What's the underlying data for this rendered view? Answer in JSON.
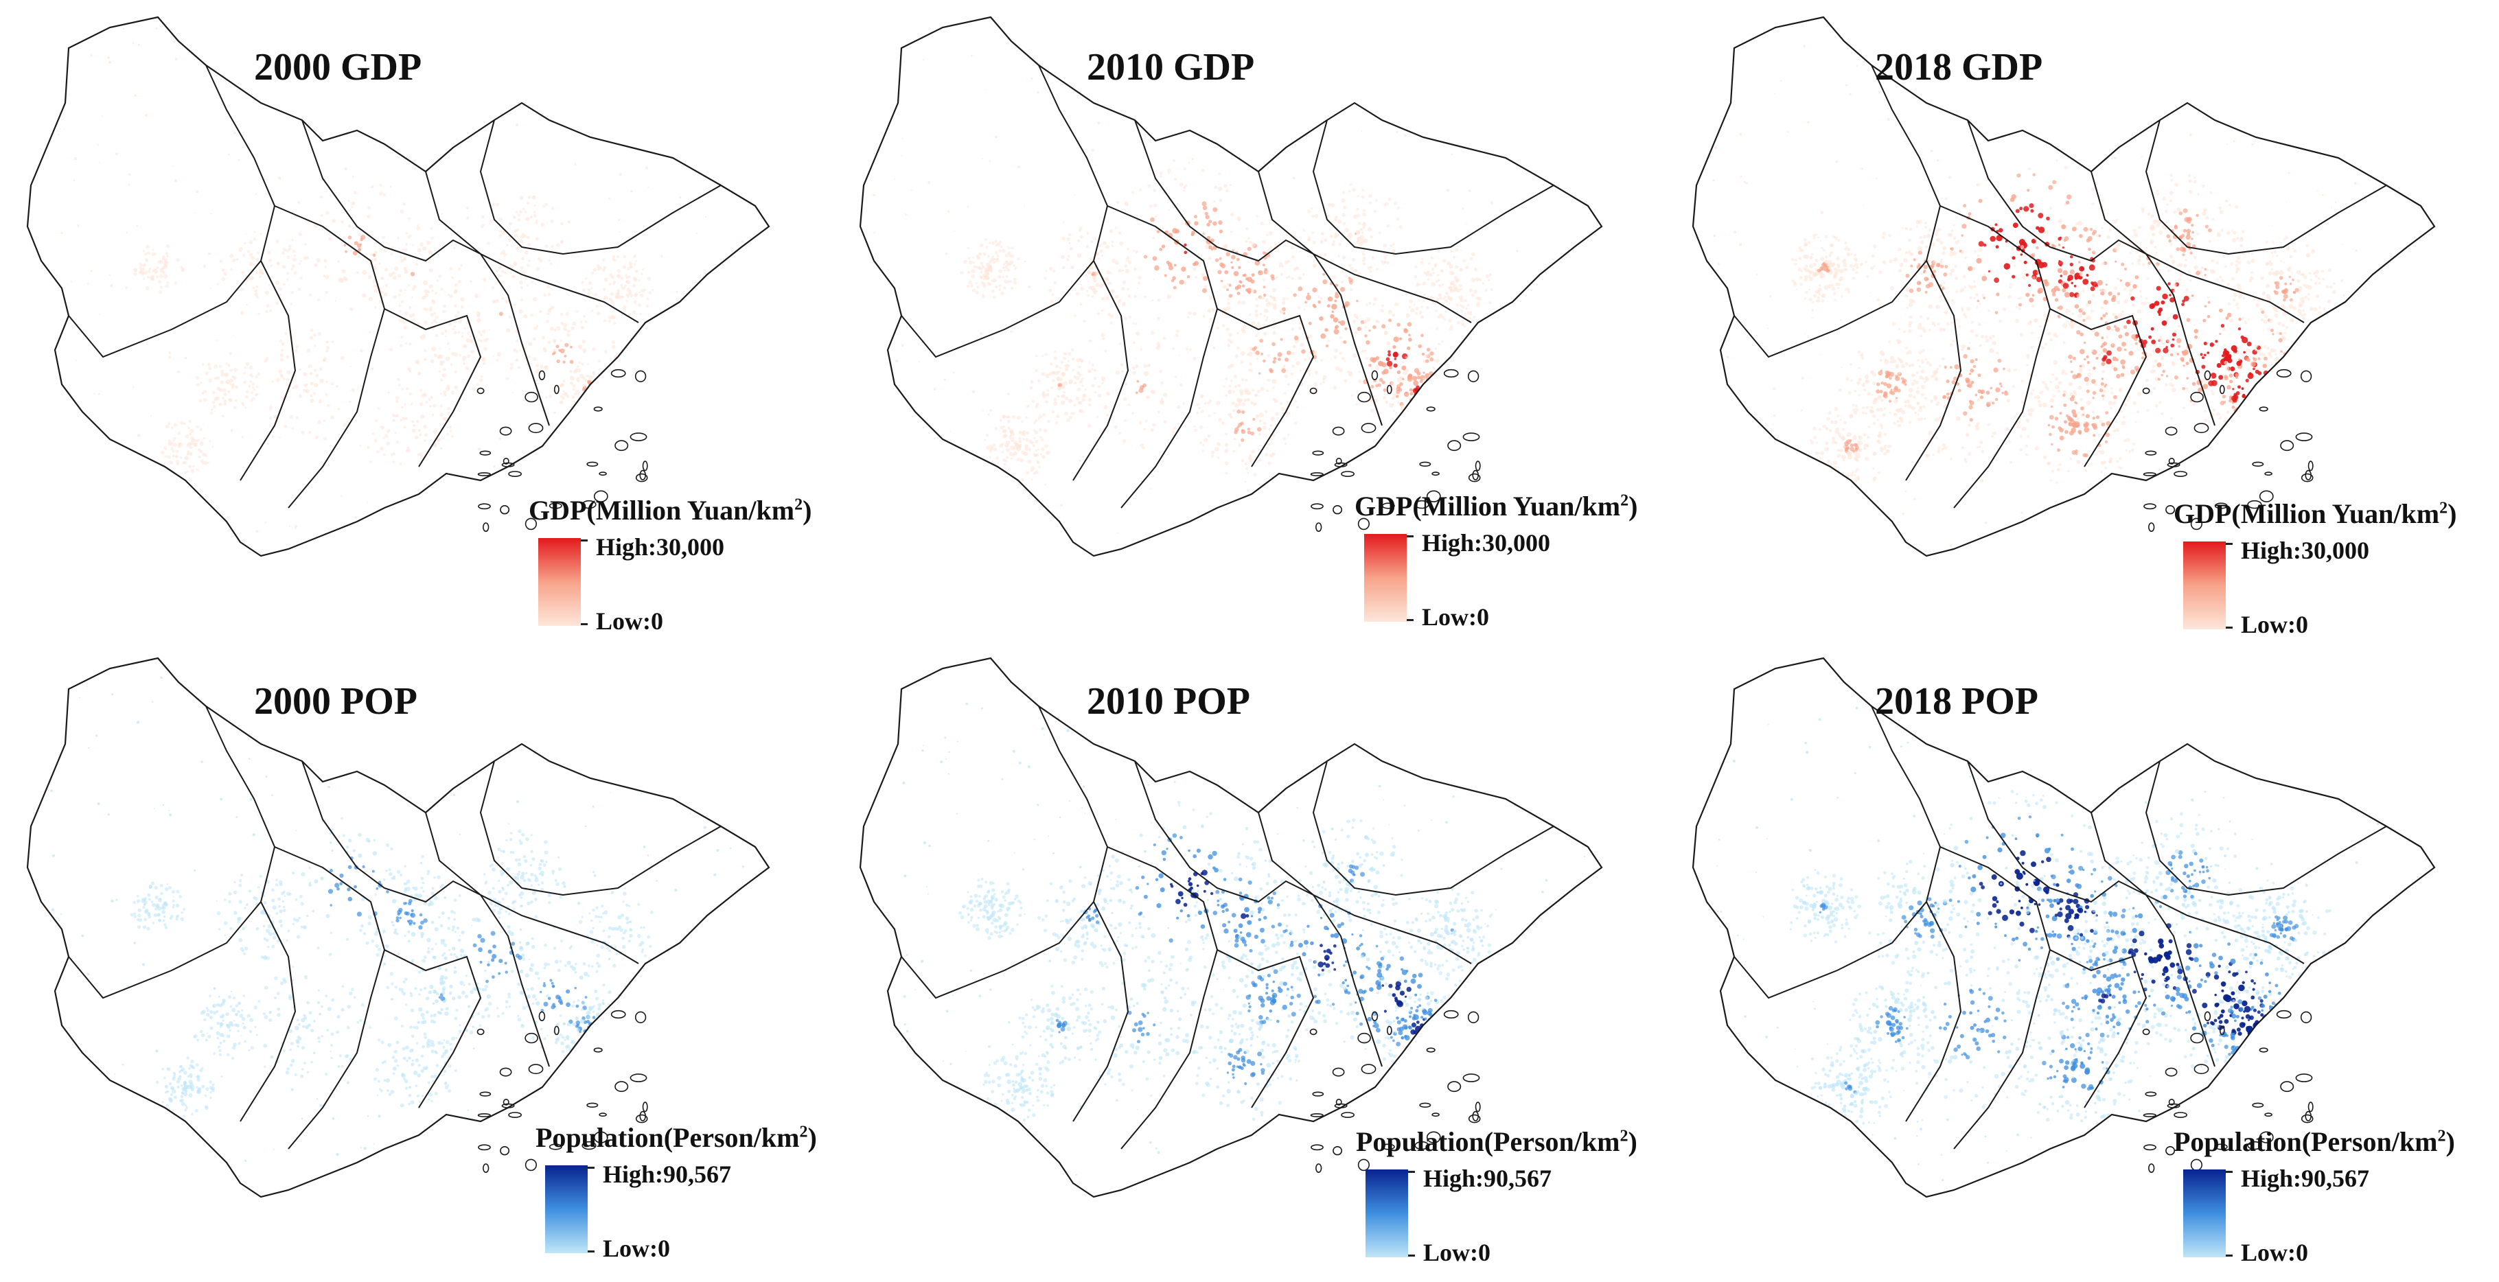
{
  "figure": {
    "panels": [
      {
        "title": "2000 GDP",
        "variable": "GDP",
        "year": "2000",
        "color": "#e8261e",
        "intensity": 0.35,
        "legend": {
          "unit_base": "GDP(Million Yuan/km",
          "unit_exp": "2",
          "unit_close": ")",
          "high": "High:30,000",
          "low": "Low:0"
        }
      },
      {
        "title": "2010 GDP",
        "variable": "GDP",
        "year": "2010",
        "color": "#e8261e",
        "intensity": 0.65,
        "legend": {
          "unit_base": "GDP(Million Yuan/km",
          "unit_exp": "2",
          "unit_close": ")",
          "high": "High:30,000",
          "low": "Low:0"
        }
      },
      {
        "title": "2018 GDP",
        "variable": "GDP",
        "year": "2018",
        "color": "#e8261e",
        "intensity": 1.0,
        "legend": {
          "unit_base": "GDP(Million Yuan/km",
          "unit_exp": "2",
          "unit_close": ")",
          "high": "High:30,000",
          "low": "Low:0"
        }
      },
      {
        "title": "2000 POP",
        "variable": "POP",
        "year": "2000",
        "color": "#0a2a9a",
        "intensity": 0.45,
        "legend": {
          "unit_base": "Population(Person/km",
          "unit_exp": "2",
          "unit_close": ")",
          "high": "High:90,567",
          "low": "Low:0"
        }
      },
      {
        "title": "2010 POP",
        "variable": "POP",
        "year": "2010",
        "color": "#0a2a9a",
        "intensity": 0.75,
        "legend": {
          "unit_base": "Population(Person/km",
          "unit_exp": "2",
          "unit_close": ")",
          "high": "High:90,567",
          "low": "Low:0"
        }
      },
      {
        "title": "2018 POP",
        "variable": "POP",
        "year": "2018",
        "color": "#0a2a9a",
        "intensity": 1.0,
        "legend": {
          "unit_base": "Population(Person/km",
          "unit_exp": "2",
          "unit_close": ")",
          "high": "High:90,567",
          "low": "Low:0"
        }
      }
    ],
    "ramps": {
      "GDP": {
        "high_color": "#e31a1c",
        "mid_color": "#f7a38a",
        "low_color": "#fde6da"
      },
      "POP": {
        "high_color": "#08238f",
        "mid_color": "#3f8fe0",
        "low_color": "#bfe6f7"
      }
    }
  }
}
